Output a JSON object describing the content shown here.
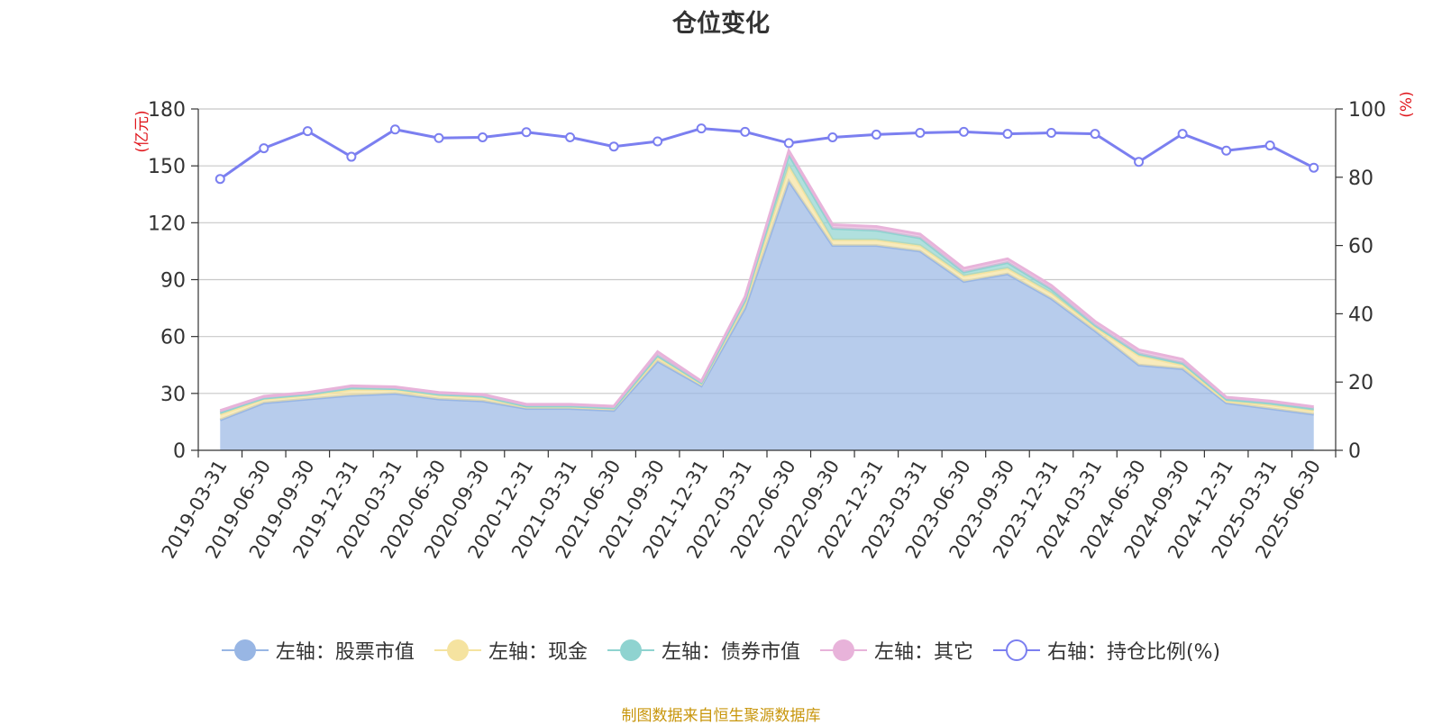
{
  "chart_data": {
    "type": "area",
    "title": "仓位变化",
    "left_axis_unit": "(亿元)",
    "right_axis_unit": "(%)",
    "ylim_left": [
      0,
      180
    ],
    "yticks_left": [
      0,
      30,
      60,
      90,
      120,
      150,
      180
    ],
    "ylim_right": [
      0,
      100
    ],
    "yticks_right": [
      0,
      20,
      40,
      60,
      80,
      100
    ],
    "grid": true,
    "legend_position": "bottom",
    "x": [
      "2019-03-31",
      "2019-06-30",
      "2019-09-30",
      "2019-12-31",
      "2020-03-31",
      "2020-06-30",
      "2020-09-30",
      "2020-12-31",
      "2021-03-31",
      "2021-06-30",
      "2021-09-30",
      "2021-12-31",
      "2022-03-31",
      "2022-06-30",
      "2022-09-30",
      "2022-12-31",
      "2023-03-31",
      "2023-06-30",
      "2023-09-30",
      "2023-12-31",
      "2024-03-31",
      "2024-06-30",
      "2024-09-30",
      "2024-12-31",
      "2025-03-31",
      "2025-06-30"
    ],
    "series": [
      {
        "name": "左轴：股票市值",
        "axis": "left",
        "stacked": true,
        "color": "#98b6e4",
        "values": [
          16,
          25,
          27,
          29,
          30,
          27,
          26,
          22,
          22,
          21,
          47,
          34,
          75,
          142,
          108,
          108,
          105,
          89,
          93,
          80,
          63,
          45,
          43,
          25,
          22,
          19
        ]
      },
      {
        "name": "左轴：现金",
        "axis": "left",
        "stacked": true,
        "color": "#f5e3a0",
        "values": [
          3,
          2,
          2,
          3,
          2,
          2,
          2,
          1,
          1,
          1,
          2,
          1,
          3,
          8,
          3,
          3,
          3,
          3,
          3,
          3,
          2,
          5,
          2,
          1,
          2,
          2
        ]
      },
      {
        "name": "左轴：债券市值",
        "axis": "left",
        "stacked": true,
        "color": "#8fd3d0",
        "values": [
          1,
          0.5,
          0.5,
          1,
          0.5,
          0.5,
          0.5,
          0.3,
          0.3,
          0.3,
          1,
          0.5,
          1,
          6,
          6,
          5,
          4,
          2,
          3,
          2,
          1,
          1,
          1,
          1,
          1,
          1
        ]
      },
      {
        "name": "左轴：其它",
        "axis": "left",
        "stacked": true,
        "color": "#e8b3da",
        "values": [
          1,
          1,
          1,
          1,
          1,
          1,
          1,
          1,
          1,
          1,
          2,
          1,
          2,
          2,
          2,
          2,
          2,
          2,
          2,
          2,
          2,
          2,
          2,
          1,
          1,
          1
        ]
      },
      {
        "name": "右轴：持仓比例(%)",
        "axis": "right",
        "stacked": false,
        "color": "#7b7ff0",
        "type": "line",
        "values": [
          79.5,
          88.5,
          93.5,
          86,
          94,
          91.5,
          91.7,
          93.2,
          91.7,
          89,
          90.5,
          94.3,
          93.3,
          90,
          91.7,
          92.5,
          93,
          93.3,
          92.7,
          93,
          92.7,
          84.5,
          92.7,
          87.8,
          89.3,
          82.8
        ]
      }
    ]
  },
  "source_note": "制图数据来自恒生聚源数据库"
}
